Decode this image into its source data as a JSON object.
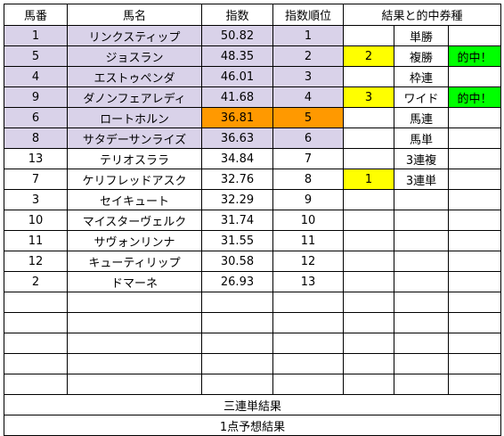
{
  "headers": {
    "number": "馬番",
    "name": "馬名",
    "index": "指数",
    "rank": "指数順位",
    "results": "結果と的中券種"
  },
  "rows": [
    {
      "number": "1",
      "name": "リンクスティップ",
      "index": "50.82",
      "rank": "1",
      "highlight": true
    },
    {
      "number": "5",
      "name": "ジョスラン",
      "index": "48.35",
      "rank": "2",
      "highlight": true
    },
    {
      "number": "4",
      "name": "エストゥペンダ",
      "index": "46.01",
      "rank": "3",
      "highlight": true
    },
    {
      "number": "9",
      "name": "ダノンフェアレディ",
      "index": "41.68",
      "rank": "4",
      "highlight": true
    },
    {
      "number": "6",
      "name": "ロートホルン",
      "index": "36.81",
      "rank": "5",
      "highlight": true
    },
    {
      "number": "8",
      "name": "サタデーサンライズ",
      "index": "36.63",
      "rank": "6",
      "highlight": true
    },
    {
      "number": "13",
      "name": "テリオスララ",
      "index": "34.84",
      "rank": "7",
      "highlight": false
    },
    {
      "number": "7",
      "name": "ケリフレッドアスク",
      "index": "32.76",
      "rank": "8",
      "highlight": false
    },
    {
      "number": "3",
      "name": "セイキュート",
      "index": "32.29",
      "rank": "9",
      "highlight": false
    },
    {
      "number": "10",
      "name": "マイスターヴェルク",
      "index": "31.74",
      "rank": "10",
      "highlight": false
    },
    {
      "number": "11",
      "name": "サヴォンリンナ",
      "index": "31.55",
      "rank": "11",
      "highlight": false
    },
    {
      "number": "12",
      "name": "キューティリップ",
      "index": "30.58",
      "rank": "12",
      "highlight": false
    },
    {
      "number": "2",
      "name": "ドマーネ",
      "index": "26.93",
      "rank": "13",
      "highlight": false
    }
  ],
  "results": [
    {
      "place": "",
      "bet_type": "単勝",
      "hit": ""
    },
    {
      "place": "2",
      "bet_type": "複勝",
      "hit": "的中！"
    },
    {
      "place": "",
      "bet_type": "枠連",
      "hit": ""
    },
    {
      "place": "3",
      "bet_type": "ワイド",
      "hit": "的中！"
    },
    {
      "place": "",
      "bet_type": "馬連",
      "hit": ""
    },
    {
      "place": "",
      "bet_type": "馬単",
      "hit": ""
    },
    {
      "place": "",
      "bet_type": "3連複",
      "hit": ""
    },
    {
      "place": "1",
      "bet_type": "3連単",
      "hit": ""
    }
  ],
  "footer": {
    "trifecta_result": "三連単結果",
    "single_prediction_result": "1点予想結果"
  },
  "colors": {
    "highlight_row": "#d9d2e9",
    "orange_index": "#ff9900",
    "place_yellow": "#ffff00",
    "hit_green": "#00ff00"
  }
}
